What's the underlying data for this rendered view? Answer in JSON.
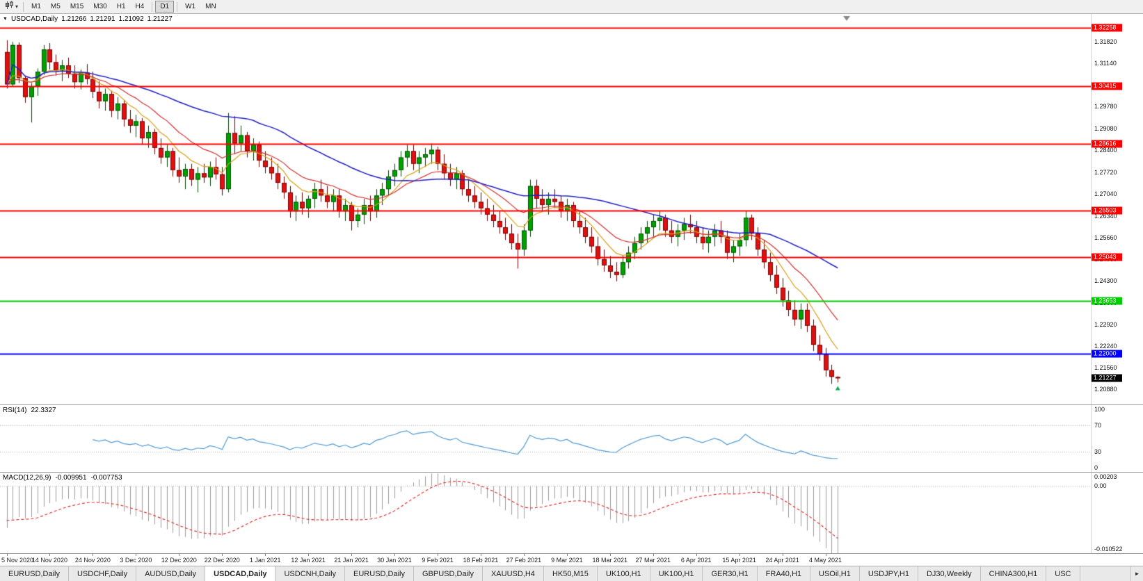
{
  "icons": {
    "caret_down": "▾",
    "dropdown_arrow": "▼",
    "scroll_right": "►"
  },
  "toolbar": {
    "timeframes": [
      "M1",
      "M5",
      "M15",
      "M30",
      "H1",
      "H4",
      "D1",
      "W1",
      "MN"
    ],
    "active": "D1",
    "group_breaks": [
      "H4",
      "D1"
    ]
  },
  "chart": {
    "symbol_label": "USDCAD,Daily",
    "open": "1.21266",
    "high": "1.21291",
    "low": "1.21092",
    "close": "1.21227"
  },
  "rsi": {
    "name": "RSI(14)",
    "value": "22.3327",
    "color": "#4F9AD4",
    "levels": [
      70,
      30
    ],
    "axis_labels": [
      "100",
      "70",
      "30",
      "0"
    ]
  },
  "macd": {
    "name": "MACD(12,26,9)",
    "main": "-0.009951",
    "signal": "-0.007753",
    "fast": 12,
    "slow": 26,
    "signal_period": 9,
    "histogram_color": "#9C9C9C",
    "signal_color": "#E02020",
    "range": [
      -0.010522,
      0.00203
    ],
    "axis_labels": [
      "0.00203",
      "0.00",
      "-0.010522"
    ]
  },
  "tabs": {
    "items": [
      {
        "label": "EURUSD,Daily",
        "active": false
      },
      {
        "label": "USDCHF,Daily",
        "active": false
      },
      {
        "label": "AUDUSD,Daily",
        "active": false
      },
      {
        "label": "USDCAD,Daily",
        "active": true
      },
      {
        "label": "USDCNH,Daily",
        "active": false
      },
      {
        "label": "EURUSD,Daily",
        "active": false
      },
      {
        "label": "GBPUSD,Daily",
        "active": false
      },
      {
        "label": "XAUUSD,H4",
        "active": false
      },
      {
        "label": "HK50,M15",
        "active": false
      },
      {
        "label": "UK100,H1",
        "active": false
      },
      {
        "label": "UK100,H1",
        "active": false
      },
      {
        "label": "GER30,H1",
        "active": false
      },
      {
        "label": "FRA40,H1",
        "active": false
      },
      {
        "label": "USOil,H1",
        "active": false
      },
      {
        "label": "USDJPY,H1",
        "active": false
      },
      {
        "label": "DJ30,Weekly",
        "active": false
      },
      {
        "label": "CHINA300,H1",
        "active": false
      },
      {
        "label": "USC",
        "active": false
      }
    ]
  },
  "chart_data": {
    "type": "candlestick",
    "symbol": "USDCAD",
    "timeframe": "Daily",
    "title": "USDCAD,Daily 1.21266 1.21291 1.21092 1.21227",
    "y_range": {
      "max": 1.327,
      "min": 1.204
    },
    "y_axis_labels": [
      "1.31820",
      "1.31140",
      "1.30460",
      "1.29780",
      "1.29080",
      "1.28400",
      "1.27720",
      "1.27040",
      "1.26340",
      "1.25660",
      "1.24980",
      "1.24300",
      "1.23600",
      "1.22920",
      "1.22240",
      "1.21560",
      "1.20880"
    ],
    "x_labels": [
      "5 Nov 2020",
      "14 Nov 2020",
      "24 Nov 2020",
      "3 Dec 2020",
      "12 Dec 2020",
      "22 Dec 2020",
      "1 Jan 2021",
      "12 Jan 2021",
      "21 Jan 2021",
      "30 Jan 2021",
      "9 Feb 2021",
      "18 Feb 2021",
      "27 Feb 2021",
      "9 Mar 2021",
      "18 Mar 2021",
      "27 Mar 2021",
      "6 Apr 2021",
      "15 Apr 2021",
      "24 Apr 2021",
      "4 May 2021"
    ],
    "x_label_step": 7,
    "colors": {
      "background": "#FFFFFF",
      "bull": "#00A000",
      "bear": "#E01010",
      "bull_border": "#003F00",
      "bear_border": "#5E0000"
    },
    "overlays": [
      {
        "name": "ma-fast",
        "type": "ema",
        "period": 8,
        "color": "#D8A018",
        "width": 1.2
      },
      {
        "name": "ma-mid",
        "type": "ema",
        "period": 16,
        "color": "#D23030",
        "width": 1.2
      },
      {
        "name": "ma-slow",
        "type": "sma",
        "period": 40,
        "color": "#2020C0",
        "width": 1.5
      }
    ],
    "horizontal_lines": [
      {
        "label": "1.32258",
        "price": 1.32258,
        "color": "#FF0000",
        "width": 2
      },
      {
        "label": "1.30415",
        "price": 1.30415,
        "color": "#FF0000",
        "width": 2
      },
      {
        "label": "1.28616",
        "price": 1.28616,
        "color": "#FF0000",
        "width": 2
      },
      {
        "label": "1.26503",
        "price": 1.26503,
        "color": "#FF0000",
        "width": 2
      },
      {
        "label": "1.25043",
        "price": 1.25043,
        "color": "#FF0000",
        "width": 2
      },
      {
        "label": "1.23653",
        "price": 1.23653,
        "color": "#00CC00",
        "width": 2
      },
      {
        "label": "1.22000",
        "price": 1.22,
        "color": "#0000FF",
        "width": 2
      }
    ],
    "current_price_tag": {
      "label": "1.21227",
      "price": 1.21227,
      "bg": "#000000"
    },
    "indicators": [
      {
        "name": "RSI",
        "params": [
          14
        ],
        "current": 22.3327
      },
      {
        "name": "MACD",
        "params": [
          12,
          26,
          9
        ],
        "current_main": -0.009951,
        "current_signal": -0.007753
      }
    ],
    "candles": [
      [
        1.315,
        1.3187,
        1.3035,
        1.3048
      ],
      [
        1.3048,
        1.3182,
        1.304,
        1.3172
      ],
      [
        1.3172,
        1.318,
        1.3052,
        1.3068
      ],
      [
        1.3068,
        1.3075,
        1.299,
        1.3008
      ],
      [
        1.3008,
        1.3052,
        1.2928,
        1.3042
      ],
      [
        1.3042,
        1.3098,
        1.3012,
        1.3088
      ],
      [
        1.3088,
        1.3172,
        1.3078,
        1.3158
      ],
      [
        1.3158,
        1.3178,
        1.3095,
        1.3118
      ],
      [
        1.3118,
        1.3142,
        1.3076,
        1.3092
      ],
      [
        1.3092,
        1.3125,
        1.3058,
        1.3108
      ],
      [
        1.3108,
        1.3132,
        1.3068,
        1.3082
      ],
      [
        1.3082,
        1.3108,
        1.3035,
        1.3055
      ],
      [
        1.3055,
        1.3095,
        1.3032,
        1.3085
      ],
      [
        1.3085,
        1.3112,
        1.3048,
        1.3065
      ],
      [
        1.3065,
        1.3088,
        1.3005,
        1.3025
      ],
      [
        1.3025,
        1.3058,
        1.2972,
        1.2995
      ],
      [
        1.2995,
        1.3035,
        1.2965,
        1.3018
      ],
      [
        1.3018,
        1.3028,
        1.2945,
        1.2965
      ],
      [
        1.2965,
        1.3008,
        1.2938,
        1.2988
      ],
      [
        1.2988,
        1.2998,
        1.2915,
        1.2938
      ],
      [
        1.2938,
        1.2968,
        1.2895,
        1.2918
      ],
      [
        1.2918,
        1.2952,
        1.2882,
        1.2932
      ],
      [
        1.2932,
        1.2942,
        1.2858,
        1.2878
      ],
      [
        1.2878,
        1.2918,
        1.2848,
        1.2898
      ],
      [
        1.2898,
        1.2908,
        1.2828,
        1.2848
      ],
      [
        1.2848,
        1.2878,
        1.2798,
        1.2818
      ],
      [
        1.2818,
        1.2858,
        1.2788,
        1.2838
      ],
      [
        1.2838,
        1.2848,
        1.2758,
        1.2778
      ],
      [
        1.2778,
        1.2818,
        1.2738,
        1.2758
      ],
      [
        1.2758,
        1.2798,
        1.2718,
        1.2782
      ],
      [
        1.2782,
        1.2798,
        1.2728,
        1.2748
      ],
      [
        1.2748,
        1.2788,
        1.2708,
        1.2768
      ],
      [
        1.2768,
        1.2798,
        1.2738,
        1.2755
      ],
      [
        1.2755,
        1.2805,
        1.2728,
        1.2788
      ],
      [
        1.2788,
        1.2818,
        1.2748,
        1.2765
      ],
      [
        1.2765,
        1.2788,
        1.2698,
        1.2718
      ],
      [
        1.2718,
        1.2958,
        1.2708,
        1.2895
      ],
      [
        1.2895,
        1.2948,
        1.2828,
        1.2862
      ],
      [
        1.2862,
        1.2918,
        1.2838,
        1.2888
      ],
      [
        1.2888,
        1.2898,
        1.2818,
        1.2838
      ],
      [
        1.2838,
        1.2878,
        1.2808,
        1.2858
      ],
      [
        1.2858,
        1.2868,
        1.2788,
        1.2808
      ],
      [
        1.2808,
        1.2838,
        1.2768,
        1.2788
      ],
      [
        1.2788,
        1.2818,
        1.2748,
        1.2768
      ],
      [
        1.2768,
        1.2798,
        1.2718,
        1.2738
      ],
      [
        1.2738,
        1.2758,
        1.2688,
        1.2708
      ],
      [
        1.2708,
        1.2728,
        1.2628,
        1.2648
      ],
      [
        1.2648,
        1.2698,
        1.2618,
        1.2678
      ],
      [
        1.2678,
        1.2708,
        1.2638,
        1.2658
      ],
      [
        1.2658,
        1.2698,
        1.2628,
        1.2688
      ],
      [
        1.2688,
        1.2738,
        1.2658,
        1.2718
      ],
      [
        1.2718,
        1.2748,
        1.2678,
        1.2698
      ],
      [
        1.2698,
        1.2728,
        1.2658,
        1.2678
      ],
      [
        1.2678,
        1.2718,
        1.2648,
        1.2698
      ],
      [
        1.2698,
        1.2718,
        1.2628,
        1.2648
      ],
      [
        1.2648,
        1.2688,
        1.2618,
        1.2668
      ],
      [
        1.2668,
        1.2678,
        1.2588,
        1.2618
      ],
      [
        1.2618,
        1.2658,
        1.2598,
        1.2638
      ],
      [
        1.2638,
        1.2688,
        1.2608,
        1.2668
      ],
      [
        1.2668,
        1.2698,
        1.2618,
        1.2648
      ],
      [
        1.2648,
        1.2718,
        1.2628,
        1.2698
      ],
      [
        1.2698,
        1.2738,
        1.2668,
        1.2718
      ],
      [
        1.2718,
        1.2778,
        1.2698,
        1.2758
      ],
      [
        1.2758,
        1.2798,
        1.2728,
        1.2778
      ],
      [
        1.2778,
        1.2838,
        1.2758,
        1.2818
      ],
      [
        1.2818,
        1.2858,
        1.2788,
        1.2838
      ],
      [
        1.2838,
        1.2858,
        1.2778,
        1.2798
      ],
      [
        1.2798,
        1.2838,
        1.2768,
        1.2818
      ],
      [
        1.2818,
        1.2848,
        1.2788,
        1.2828
      ],
      [
        1.2828,
        1.2862,
        1.2798,
        1.2842
      ],
      [
        1.2842,
        1.2852,
        1.2778,
        1.2798
      ],
      [
        1.2798,
        1.2828,
        1.2748,
        1.2768
      ],
      [
        1.2768,
        1.2798,
        1.2728,
        1.2748
      ],
      [
        1.2748,
        1.2788,
        1.2718,
        1.2768
      ],
      [
        1.2768,
        1.2778,
        1.2698,
        1.2718
      ],
      [
        1.2718,
        1.2748,
        1.2678,
        1.2698
      ],
      [
        1.2698,
        1.2728,
        1.2658,
        1.2678
      ],
      [
        1.2678,
        1.2708,
        1.2638,
        1.2658
      ],
      [
        1.2658,
        1.2688,
        1.2618,
        1.2638
      ],
      [
        1.2638,
        1.2668,
        1.2598,
        1.2618
      ],
      [
        1.2618,
        1.2648,
        1.2578,
        1.2598
      ],
      [
        1.2598,
        1.2628,
        1.2558,
        1.2578
      ],
      [
        1.2578,
        1.2608,
        1.2528,
        1.2548
      ],
      [
        1.2548,
        1.2578,
        1.2468,
        1.2528
      ],
      [
        1.2528,
        1.2608,
        1.2508,
        1.2588
      ],
      [
        1.2588,
        1.2748,
        1.2568,
        1.2728
      ],
      [
        1.2728,
        1.2748,
        1.2658,
        1.2688
      ],
      [
        1.2688,
        1.2718,
        1.2648,
        1.2668
      ],
      [
        1.2668,
        1.2708,
        1.2638,
        1.2688
      ],
      [
        1.2688,
        1.2718,
        1.2658,
        1.2678
      ],
      [
        1.2678,
        1.2698,
        1.2628,
        1.2648
      ],
      [
        1.2648,
        1.2688,
        1.2618,
        1.2668
      ],
      [
        1.2668,
        1.2678,
        1.2598,
        1.2618
      ],
      [
        1.2618,
        1.2648,
        1.2578,
        1.2598
      ],
      [
        1.2598,
        1.2628,
        1.2548,
        1.2568
      ],
      [
        1.2568,
        1.2598,
        1.2518,
        1.2538
      ],
      [
        1.2538,
        1.2568,
        1.2478,
        1.2498
      ],
      [
        1.2498,
        1.2528,
        1.2458,
        1.2478
      ],
      [
        1.2478,
        1.2508,
        1.2438,
        1.2458
      ],
      [
        1.2458,
        1.2488,
        1.2428,
        1.2448
      ],
      [
        1.2448,
        1.2508,
        1.2438,
        1.2488
      ],
      [
        1.2488,
        1.2538,
        1.2468,
        1.2518
      ],
      [
        1.2518,
        1.2568,
        1.2498,
        1.2548
      ],
      [
        1.2548,
        1.2598,
        1.2528,
        1.2578
      ],
      [
        1.2578,
        1.2618,
        1.2548,
        1.2598
      ],
      [
        1.2598,
        1.2638,
        1.2568,
        1.2618
      ],
      [
        1.2618,
        1.2648,
        1.2588,
        1.2628
      ],
      [
        1.2628,
        1.2638,
        1.2568,
        1.2588
      ],
      [
        1.2588,
        1.2618,
        1.2548,
        1.2568
      ],
      [
        1.2568,
        1.2608,
        1.2538,
        1.2588
      ],
      [
        1.2588,
        1.2628,
        1.2558,
        1.2608
      ],
      [
        1.2608,
        1.2638,
        1.2578,
        1.2598
      ],
      [
        1.2598,
        1.2618,
        1.2548,
        1.2568
      ],
      [
        1.2568,
        1.2598,
        1.2528,
        1.2548
      ],
      [
        1.2548,
        1.2588,
        1.2518,
        1.2568
      ],
      [
        1.2568,
        1.2608,
        1.2538,
        1.2588
      ],
      [
        1.2588,
        1.2618,
        1.2548,
        1.2568
      ],
      [
        1.2568,
        1.2588,
        1.2498,
        1.2518
      ],
      [
        1.2518,
        1.2558,
        1.2488,
        1.2538
      ],
      [
        1.2538,
        1.2578,
        1.2508,
        1.2558
      ],
      [
        1.2558,
        1.2648,
        1.2538,
        1.2628
      ],
      [
        1.2628,
        1.2638,
        1.2558,
        1.2578
      ],
      [
        1.2578,
        1.2598,
        1.2508,
        1.2528
      ],
      [
        1.2528,
        1.2558,
        1.2468,
        1.2488
      ],
      [
        1.2488,
        1.2518,
        1.2428,
        1.2448
      ],
      [
        1.2448,
        1.2478,
        1.2388,
        1.2408
      ],
      [
        1.2408,
        1.2438,
        1.2348,
        1.2368
      ],
      [
        1.2368,
        1.2398,
        1.2318,
        1.2338
      ],
      [
        1.2338,
        1.2368,
        1.2288,
        1.2308
      ],
      [
        1.2308,
        1.2358,
        1.2278,
        1.2338
      ],
      [
        1.2338,
        1.2358,
        1.2268,
        1.2288
      ],
      [
        1.2288,
        1.2308,
        1.2208,
        1.2228
      ],
      [
        1.2228,
        1.2258,
        1.2178,
        1.2198
      ],
      [
        1.2198,
        1.2218,
        1.2128,
        1.2148
      ],
      [
        1.2148,
        1.2165,
        1.2105,
        1.2127
      ],
      [
        1.21266,
        1.21291,
        1.21092,
        1.21227
      ]
    ]
  }
}
